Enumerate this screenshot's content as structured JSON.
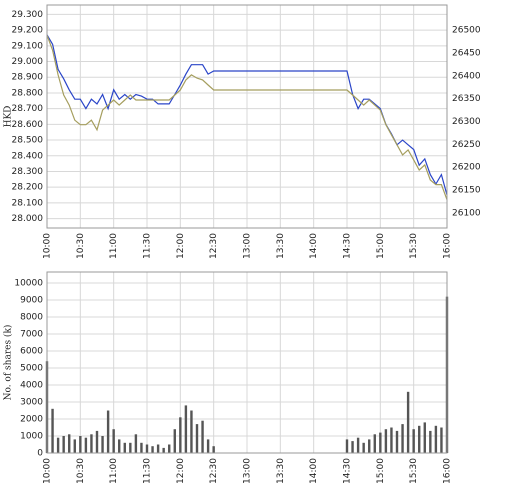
{
  "chart_data": [
    {
      "type": "line",
      "ylabel": "HKD",
      "x": [
        "10:00",
        "10:05",
        "10:10",
        "10:15",
        "10:20",
        "10:25",
        "10:30",
        "10:35",
        "10:40",
        "10:45",
        "10:50",
        "10:55",
        "11:00",
        "11:05",
        "11:10",
        "11:15",
        "11:20",
        "11:25",
        "11:30",
        "11:35",
        "11:40",
        "11:45",
        "11:50",
        "11:55",
        "12:00",
        "12:05",
        "12:10",
        "12:15",
        "12:20",
        "12:25",
        "12:30",
        "14:30",
        "14:35",
        "14:40",
        "14:45",
        "14:50",
        "14:55",
        "15:00",
        "15:05",
        "15:10",
        "15:15",
        "15:20",
        "15:25",
        "15:30",
        "15:35",
        "15:40",
        "15:45",
        "15:50",
        "15:55",
        "16:00"
      ],
      "xlim": [
        "10:00",
        "16:00"
      ],
      "xticks": [
        "10:00",
        "10:30",
        "11:00",
        "11:30",
        "12:00",
        "12:30",
        "13:00",
        "13:30",
        "14:00",
        "14:30",
        "15:00",
        "15:30",
        "16:00"
      ],
      "ylim": [
        27.94,
        29.36
      ],
      "yticks": [
        {
          "value": 28.0,
          "label": "28.000"
        },
        {
          "value": 28.1,
          "label": "28.100"
        },
        {
          "value": 28.2,
          "label": "28.200"
        },
        {
          "value": 28.3,
          "label": "28.300"
        },
        {
          "value": 28.4,
          "label": "28.400"
        },
        {
          "value": 28.5,
          "label": "28.500"
        },
        {
          "value": 28.6,
          "label": "28.600"
        },
        {
          "value": 28.7,
          "label": "28.700"
        },
        {
          "value": 28.8,
          "label": "28.800"
        },
        {
          "value": 28.9,
          "label": "28.900"
        },
        {
          "value": 29.0,
          "label": "29.000"
        },
        {
          "value": 29.1,
          "label": "29.100"
        },
        {
          "value": 29.2,
          "label": "29.200"
        },
        {
          "value": 29.3,
          "label": "29.300"
        }
      ],
      "y2lim": [
        26067,
        26555
      ],
      "y2ticks": [
        26100,
        26150,
        26200,
        26250,
        26300,
        26350,
        26400,
        26450,
        26500
      ],
      "grid": true,
      "series": [
        {
          "color": "#2a45c8",
          "values": [
            29.17,
            29.11,
            28.95,
            28.89,
            28.82,
            28.76,
            28.76,
            28.7,
            28.76,
            28.73,
            28.79,
            28.7,
            28.82,
            28.76,
            28.79,
            28.76,
            28.79,
            28.78,
            28.76,
            28.76,
            28.73,
            28.73,
            28.73,
            28.79,
            28.85,
            28.92,
            28.98,
            28.98,
            28.98,
            28.92,
            28.94,
            28.94,
            28.79,
            28.7,
            28.76,
            28.76,
            28.73,
            28.7,
            28.6,
            28.54,
            28.47,
            28.5,
            28.47,
            28.44,
            28.34,
            28.38,
            28.28,
            28.22,
            28.28,
            28.15
          ]
        },
        {
          "color": "#a59e5e",
          "axis": "y2",
          "values": [
            26489,
            26456,
            26402,
            26358,
            26336,
            26303,
            26293,
            26293,
            26303,
            26282,
            26325,
            26336,
            26347,
            26336,
            26347,
            26358,
            26347,
            26347,
            26347,
            26347,
            26347,
            26347,
            26347,
            26358,
            26369,
            26391,
            26402,
            26395,
            26391,
            26380,
            26369,
            26369,
            26358,
            26347,
            26336,
            26347,
            26336,
            26325,
            26293,
            26271,
            26249,
            26227,
            26238,
            26216,
            26194,
            26205,
            26172,
            26162,
            26162,
            26129
          ]
        }
      ]
    },
    {
      "type": "bar",
      "ylabel": "No. of shares (k)",
      "x": [
        "10:00",
        "10:05",
        "10:10",
        "10:15",
        "10:20",
        "10:25",
        "10:30",
        "10:35",
        "10:40",
        "10:45",
        "10:50",
        "10:55",
        "11:00",
        "11:05",
        "11:10",
        "11:15",
        "11:20",
        "11:25",
        "11:30",
        "11:35",
        "11:40",
        "11:45",
        "11:50",
        "11:55",
        "12:00",
        "12:05",
        "12:10",
        "12:15",
        "12:20",
        "12:25",
        "12:30",
        "14:30",
        "14:35",
        "14:40",
        "14:45",
        "14:50",
        "14:55",
        "15:00",
        "15:05",
        "15:10",
        "15:15",
        "15:20",
        "15:25",
        "15:30",
        "15:35",
        "15:40",
        "15:45",
        "15:50",
        "15:55",
        "16:00"
      ],
      "xlim": [
        "10:00",
        "16:00"
      ],
      "xticks": [
        "10:00",
        "10:30",
        "11:00",
        "11:30",
        "12:00",
        "12:30",
        "13:00",
        "13:30",
        "14:00",
        "14:30",
        "15:00",
        "15:30",
        "16:00"
      ],
      "ylim": [
        0,
        10650
      ],
      "yticks": [
        0,
        1000,
        2000,
        3000,
        4000,
        5000,
        6000,
        7000,
        8000,
        9000,
        10000
      ],
      "grid": true,
      "color": "#555555",
      "values": [
        5400,
        2600,
        900,
        1000,
        1100,
        800,
        1000,
        900,
        1100,
        1300,
        1000,
        2500,
        1400,
        800,
        600,
        600,
        1100,
        600,
        500,
        400,
        500,
        300,
        500,
        1400,
        2100,
        2800,
        2500,
        1700,
        1900,
        800,
        400,
        800,
        700,
        900,
        600,
        800,
        1100,
        1200,
        1400,
        1500,
        1300,
        1700,
        3600,
        1400,
        1600,
        1800,
        1300,
        1600,
        1500,
        9200
      ]
    }
  ]
}
